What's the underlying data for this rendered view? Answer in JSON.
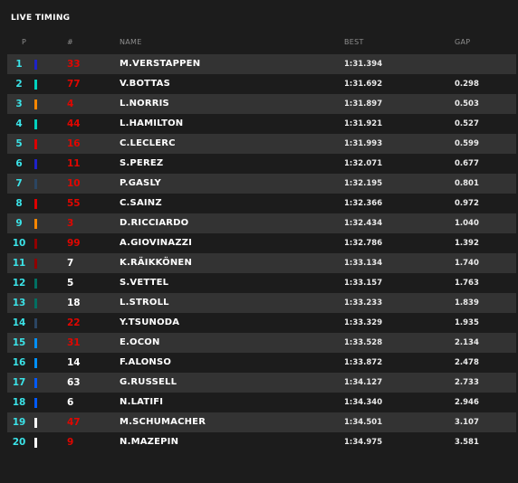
{
  "title": "LIVE TIMING",
  "headers": {
    "pos": "P",
    "num": "#",
    "name": "NAME",
    "best": "BEST",
    "gap": "GAP"
  },
  "colors": {
    "number_red": "#e10600",
    "number_white": "#ffffff",
    "position": "#3be3e8"
  },
  "rows": [
    {
      "pos": "1",
      "num": "33",
      "num_color": "#e10600",
      "team_color": "#1e22c8",
      "name": "M.VERSTAPPEN",
      "best": "1:31.394",
      "gap": ""
    },
    {
      "pos": "2",
      "num": "77",
      "num_color": "#e10600",
      "team_color": "#00d2be",
      "name": "V.BOTTAS",
      "best": "1:31.692",
      "gap": "0.298"
    },
    {
      "pos": "3",
      "num": "4",
      "num_color": "#e10600",
      "team_color": "#ff8700",
      "name": "L.NORRIS",
      "best": "1:31.897",
      "gap": "0.503"
    },
    {
      "pos": "4",
      "num": "44",
      "num_color": "#e10600",
      "team_color": "#00d2be",
      "name": "L.HAMILTON",
      "best": "1:31.921",
      "gap": "0.527"
    },
    {
      "pos": "5",
      "num": "16",
      "num_color": "#e10600",
      "team_color": "#dc0000",
      "name": "C.LECLERC",
      "best": "1:31.993",
      "gap": "0.599"
    },
    {
      "pos": "6",
      "num": "11",
      "num_color": "#e10600",
      "team_color": "#1e22c8",
      "name": "S.PEREZ",
      "best": "1:32.071",
      "gap": "0.677"
    },
    {
      "pos": "7",
      "num": "10",
      "num_color": "#e10600",
      "team_color": "#2b4562",
      "name": "P.GASLY",
      "best": "1:32.195",
      "gap": "0.801"
    },
    {
      "pos": "8",
      "num": "55",
      "num_color": "#e10600",
      "team_color": "#dc0000",
      "name": "C.SAINZ",
      "best": "1:32.366",
      "gap": "0.972"
    },
    {
      "pos": "9",
      "num": "3",
      "num_color": "#e10600",
      "team_color": "#ff8700",
      "name": "D.RICCIARDO",
      "best": "1:32.434",
      "gap": "1.040"
    },
    {
      "pos": "10",
      "num": "99",
      "num_color": "#e10600",
      "team_color": "#900000",
      "name": "A.GIOVINAZZI",
      "best": "1:32.786",
      "gap": "1.392"
    },
    {
      "pos": "11",
      "num": "7",
      "num_color": "#ffffff",
      "team_color": "#900000",
      "name": "K.RÄIKKÖNEN",
      "best": "1:33.134",
      "gap": "1.740"
    },
    {
      "pos": "12",
      "num": "5",
      "num_color": "#ffffff",
      "team_color": "#006f62",
      "name": "S.VETTEL",
      "best": "1:33.157",
      "gap": "1.763"
    },
    {
      "pos": "13",
      "num": "18",
      "num_color": "#ffffff",
      "team_color": "#006f62",
      "name": "L.STROLL",
      "best": "1:33.233",
      "gap": "1.839"
    },
    {
      "pos": "14",
      "num": "22",
      "num_color": "#e10600",
      "team_color": "#2b4562",
      "name": "Y.TSUNODA",
      "best": "1:33.329",
      "gap": "1.935"
    },
    {
      "pos": "15",
      "num": "31",
      "num_color": "#e10600",
      "team_color": "#0090ff",
      "name": "E.OCON",
      "best": "1:33.528",
      "gap": "2.134"
    },
    {
      "pos": "16",
      "num": "14",
      "num_color": "#ffffff",
      "team_color": "#0090ff",
      "name": "F.ALONSO",
      "best": "1:33.872",
      "gap": "2.478"
    },
    {
      "pos": "17",
      "num": "63",
      "num_color": "#ffffff",
      "team_color": "#005aff",
      "name": "G.RUSSELL",
      "best": "1:34.127",
      "gap": "2.733"
    },
    {
      "pos": "18",
      "num": "6",
      "num_color": "#ffffff",
      "team_color": "#005aff",
      "name": "N.LATIFI",
      "best": "1:34.340",
      "gap": "2.946"
    },
    {
      "pos": "19",
      "num": "47",
      "num_color": "#e10600",
      "team_color": "#ffffff",
      "name": "M.SCHUMACHER",
      "best": "1:34.501",
      "gap": "3.107"
    },
    {
      "pos": "20",
      "num": "9",
      "num_color": "#e10600",
      "team_color": "#ffffff",
      "name": "N.MAZEPIN",
      "best": "1:34.975",
      "gap": "3.581"
    }
  ]
}
